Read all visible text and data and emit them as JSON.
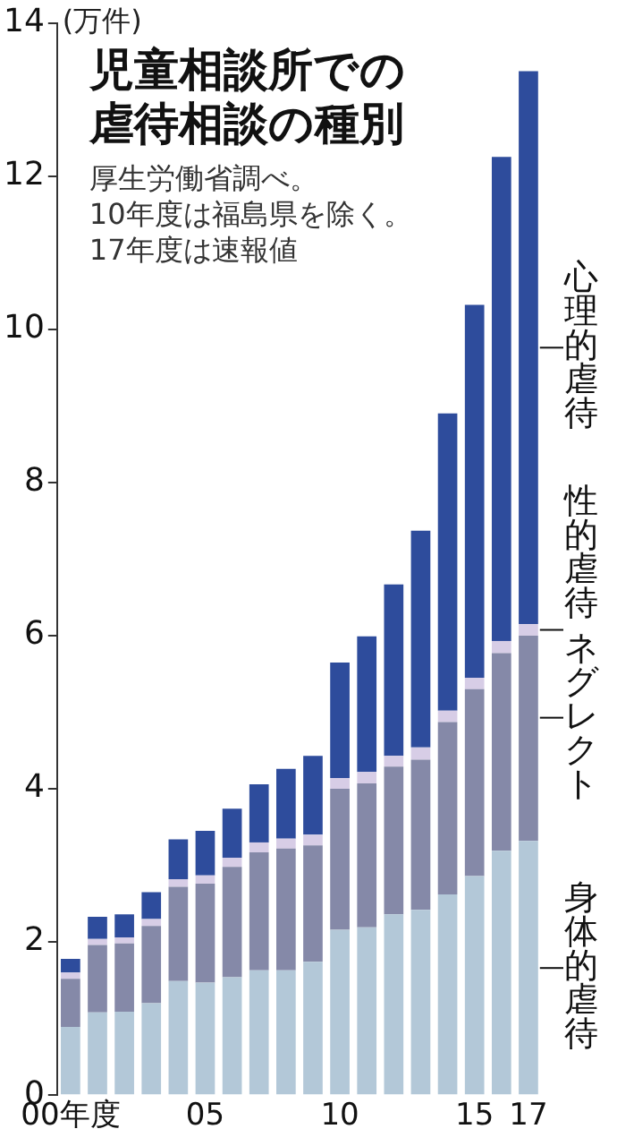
{
  "chart_data": {
    "type": "bar",
    "title": "児童相談所での虐待相談の種別",
    "annotations": [
      "厚生労働省調べ。",
      "10年度は福島県を除く。",
      "17年度は速報値"
    ],
    "ylabel": "(万件)",
    "categories": [
      "00年度",
      null,
      null,
      null,
      null,
      "05",
      null,
      null,
      null,
      null,
      "10",
      null,
      null,
      null,
      null,
      "15",
      null,
      "17"
    ],
    "stacked": true,
    "legend": false,
    "grid": false,
    "ylim": [
      0,
      14
    ],
    "yticks": [
      0,
      2,
      4,
      6,
      8,
      10,
      12,
      14
    ],
    "series": [
      {
        "name": "身体的虐待",
        "color": "#b3c8d8",
        "values": [
          0.89,
          1.08,
          1.09,
          1.2,
          1.49,
          1.47,
          1.54,
          1.63,
          1.63,
          1.74,
          2.16,
          2.19,
          2.36,
          2.42,
          2.62,
          2.86,
          3.19,
          3.32
        ]
      },
      {
        "name": "ネグレクト",
        "color": "#8589a8",
        "values": [
          0.63,
          0.88,
          0.89,
          1.01,
          1.23,
          1.29,
          1.44,
          1.54,
          1.59,
          1.52,
          1.84,
          1.88,
          1.93,
          1.96,
          2.25,
          2.44,
          2.58,
          2.68
        ]
      },
      {
        "name": "性的虐待",
        "color": "#d7cde6",
        "values": [
          0.08,
          0.08,
          0.08,
          0.09,
          0.1,
          0.11,
          0.12,
          0.13,
          0.13,
          0.14,
          0.14,
          0.15,
          0.14,
          0.16,
          0.15,
          0.15,
          0.16,
          0.15
        ]
      },
      {
        "name": "心理的虐待",
        "color": "#2e4c9c",
        "values": [
          0.18,
          0.29,
          0.3,
          0.35,
          0.52,
          0.58,
          0.64,
          0.76,
          0.91,
          1.03,
          1.51,
          1.77,
          2.24,
          2.83,
          3.88,
          4.87,
          6.32,
          7.22
        ]
      }
    ]
  }
}
